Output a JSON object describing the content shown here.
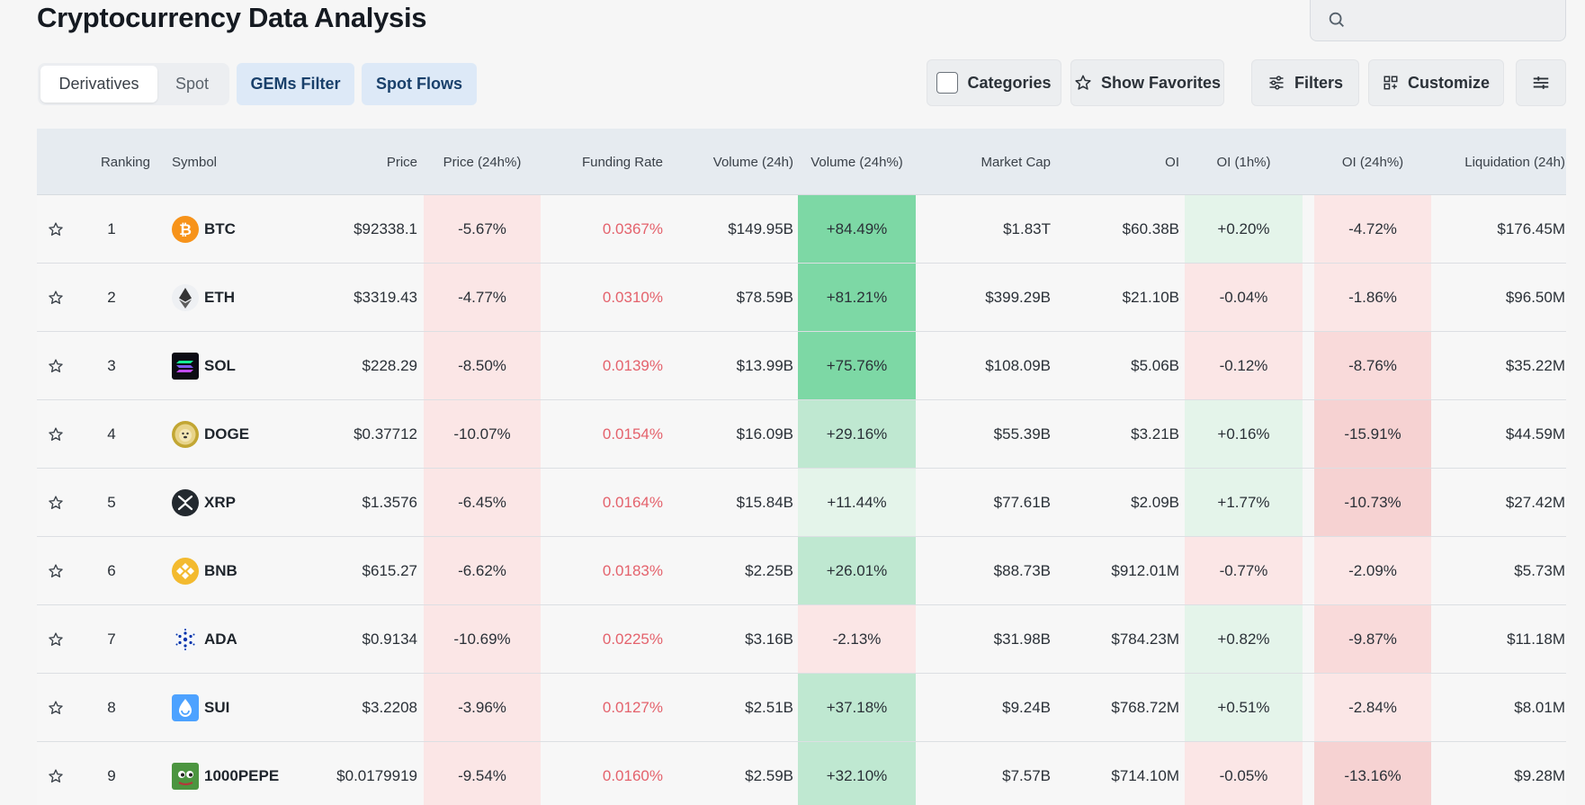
{
  "page": {
    "title": "Cryptocurrency Data Analysis"
  },
  "search": {
    "placeholder": ""
  },
  "toolbar": {
    "tabs": [
      {
        "label": "Derivatives",
        "active": true
      },
      {
        "label": "Spot",
        "active": false
      }
    ],
    "gems_filter": "GEMs Filter",
    "spot_flows": "Spot Flows",
    "categories": "Categories",
    "show_favorites": "Show Favorites",
    "filters": "Filters",
    "customize": "Customize"
  },
  "table": {
    "headers": {
      "ranking": "Ranking",
      "symbol": "Symbol",
      "price": "Price",
      "price_24h": "Price (24h%)",
      "funding_rate": "Funding Rate",
      "volume_24h": "Volume (24h)",
      "volume_24h_pct": "Volume (24h%)",
      "market_cap": "Market Cap",
      "oi": "OI",
      "oi_1h": "OI (1h%)",
      "oi_24h": "OI (24h%)",
      "liquidation": "Liquidation (24h)"
    },
    "rows": [
      {
        "rank": "1",
        "symbol": "BTC",
        "icon": "btc-icon",
        "price": "$92338.1",
        "price_24h": "-5.67%",
        "funding": "0.0367%",
        "volume": "$149.95B",
        "volume_pct": "+84.49%",
        "market_cap": "$1.83T",
        "oi": "$60.38B",
        "oi_1h": "+0.20%",
        "oi_24h": "-4.72%",
        "liquidation": "$176.45M"
      },
      {
        "rank": "2",
        "symbol": "ETH",
        "icon": "eth-icon",
        "price": "$3319.43",
        "price_24h": "-4.77%",
        "funding": "0.0310%",
        "volume": "$78.59B",
        "volume_pct": "+81.21%",
        "market_cap": "$399.29B",
        "oi": "$21.10B",
        "oi_1h": "-0.04%",
        "oi_24h": "-1.86%",
        "liquidation": "$96.50M"
      },
      {
        "rank": "3",
        "symbol": "SOL",
        "icon": "sol-icon",
        "price": "$228.29",
        "price_24h": "-8.50%",
        "funding": "0.0139%",
        "volume": "$13.99B",
        "volume_pct": "+75.76%",
        "market_cap": "$108.09B",
        "oi": "$5.06B",
        "oi_1h": "-0.12%",
        "oi_24h": "-8.76%",
        "liquidation": "$35.22M"
      },
      {
        "rank": "4",
        "symbol": "DOGE",
        "icon": "doge-icon",
        "price": "$0.37712",
        "price_24h": "-10.07%",
        "funding": "0.0154%",
        "volume": "$16.09B",
        "volume_pct": "+29.16%",
        "market_cap": "$55.39B",
        "oi": "$3.21B",
        "oi_1h": "+0.16%",
        "oi_24h": "-15.91%",
        "liquidation": "$44.59M"
      },
      {
        "rank": "5",
        "symbol": "XRP",
        "icon": "xrp-icon",
        "price": "$1.3576",
        "price_24h": "-6.45%",
        "funding": "0.0164%",
        "volume": "$15.84B",
        "volume_pct": "+11.44%",
        "market_cap": "$77.61B",
        "oi": "$2.09B",
        "oi_1h": "+1.77%",
        "oi_24h": "-10.73%",
        "liquidation": "$27.42M"
      },
      {
        "rank": "6",
        "symbol": "BNB",
        "icon": "bnb-icon",
        "price": "$615.27",
        "price_24h": "-6.62%",
        "funding": "0.0183%",
        "volume": "$2.25B",
        "volume_pct": "+26.01%",
        "market_cap": "$88.73B",
        "oi": "$912.01M",
        "oi_1h": "-0.77%",
        "oi_24h": "-2.09%",
        "liquidation": "$5.73M"
      },
      {
        "rank": "7",
        "symbol": "ADA",
        "icon": "ada-icon",
        "price": "$0.9134",
        "price_24h": "-10.69%",
        "funding": "0.0225%",
        "volume": "$3.16B",
        "volume_pct": "-2.13%",
        "market_cap": "$31.98B",
        "oi": "$784.23M",
        "oi_1h": "+0.82%",
        "oi_24h": "-9.87%",
        "liquidation": "$11.18M"
      },
      {
        "rank": "8",
        "symbol": "SUI",
        "icon": "sui-icon",
        "price": "$3.2208",
        "price_24h": "-3.96%",
        "funding": "0.0127%",
        "volume": "$2.51B",
        "volume_pct": "+37.18%",
        "market_cap": "$9.24B",
        "oi": "$768.72M",
        "oi_1h": "+0.51%",
        "oi_24h": "-2.84%",
        "liquidation": "$8.01M"
      },
      {
        "rank": "9",
        "symbol": "1000PEPE",
        "icon": "pepe-icon",
        "price": "$0.0179919",
        "price_24h": "-9.54%",
        "funding": "0.0160%",
        "volume": "$2.59B",
        "volume_pct": "+32.10%",
        "market_cap": "$7.57B",
        "oi": "$714.10M",
        "oi_1h": "-0.05%",
        "oi_24h": "-13.16%",
        "liquidation": "$9.28M"
      }
    ]
  },
  "colors": {
    "negative_light": "#fbe6e6",
    "negative_mid": "#f9dada",
    "negative_strong": "#f6d2d2",
    "positive_light": "#e4f4ea",
    "positive_mid": "#bfe8d1",
    "positive_strong": "#7dd8a5",
    "funding_text": "#e4626c",
    "chip_bg": "#dde9f7"
  }
}
